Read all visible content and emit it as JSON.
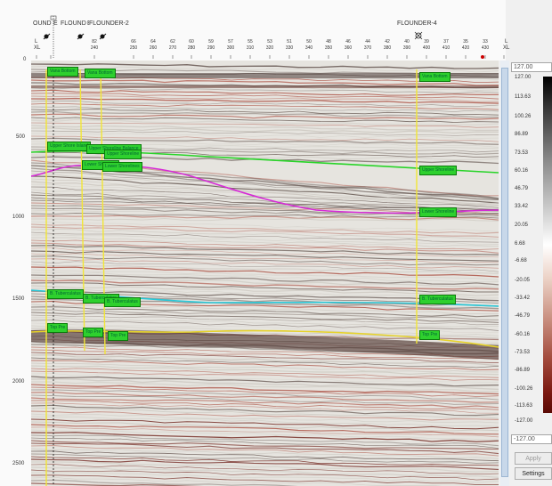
{
  "header": {
    "wells": [
      {
        "label": "OUND"
      },
      {
        "label": "E"
      },
      {
        "label": "FLOUND"
      },
      {
        "label": "ER"
      },
      {
        "label": "FLOUNDER-2"
      },
      {
        "label": "FLOUNDER-4"
      }
    ],
    "axis_label_top": "L",
    "axis_label_bottom": "XL",
    "inlines": [
      "82",
      "66",
      "64",
      "62",
      "60",
      "59",
      "57",
      "55",
      "53",
      "51",
      "50",
      "48",
      "46",
      "44",
      "42",
      "40",
      "39",
      "37",
      "35",
      "33"
    ],
    "crosslines": [
      "240",
      "250",
      "260",
      "270",
      "280",
      "290",
      "300",
      "310",
      "320",
      "330",
      "340",
      "350",
      "360",
      "370",
      "380",
      "390",
      "400",
      "410",
      "420",
      "430"
    ]
  },
  "seismic": {
    "time_ticks": [
      "0",
      "500",
      "1000",
      "1500",
      "2000",
      "2500"
    ],
    "horizons": [
      {
        "label": "Vana Bottom"
      },
      {
        "label": "Vana Bottom"
      },
      {
        "label": "Vana Bottom"
      },
      {
        "label": "Upper Shore Island"
      },
      {
        "label": "Upper Shoreline Balance"
      },
      {
        "label": "Upper Shoreline"
      },
      {
        "label": "Upper Shoreline"
      },
      {
        "label": "Lower Shoreline"
      },
      {
        "label": "Lower Shorelines"
      },
      {
        "label": "Lower Shoreline"
      },
      {
        "label": "B. Tuberculatus"
      },
      {
        "label": "B. Tuberculatus"
      },
      {
        "label": "B. Tuberculatus"
      },
      {
        "label": "B. Tuberculatus"
      },
      {
        "label": "Top Pre"
      },
      {
        "label": "Top Pre"
      },
      {
        "label": "Top Pre"
      },
      {
        "label": "Top Pre"
      }
    ]
  },
  "colorbar": {
    "max_value": "127.00",
    "min_value": "-127.00",
    "ticks": [
      "127.00",
      "113.63",
      "100.26",
      "86.89",
      "73.53",
      "60.16",
      "46.79",
      "33.42",
      "20.05",
      "6.68",
      "-6.68",
      "-20.05",
      "-33.42",
      "-46.79",
      "-60.16",
      "-73.53",
      "-86.89",
      "-100.26",
      "-113.63",
      "-127.00"
    ],
    "apply_label": "Apply",
    "settings_label": "Settings"
  }
}
